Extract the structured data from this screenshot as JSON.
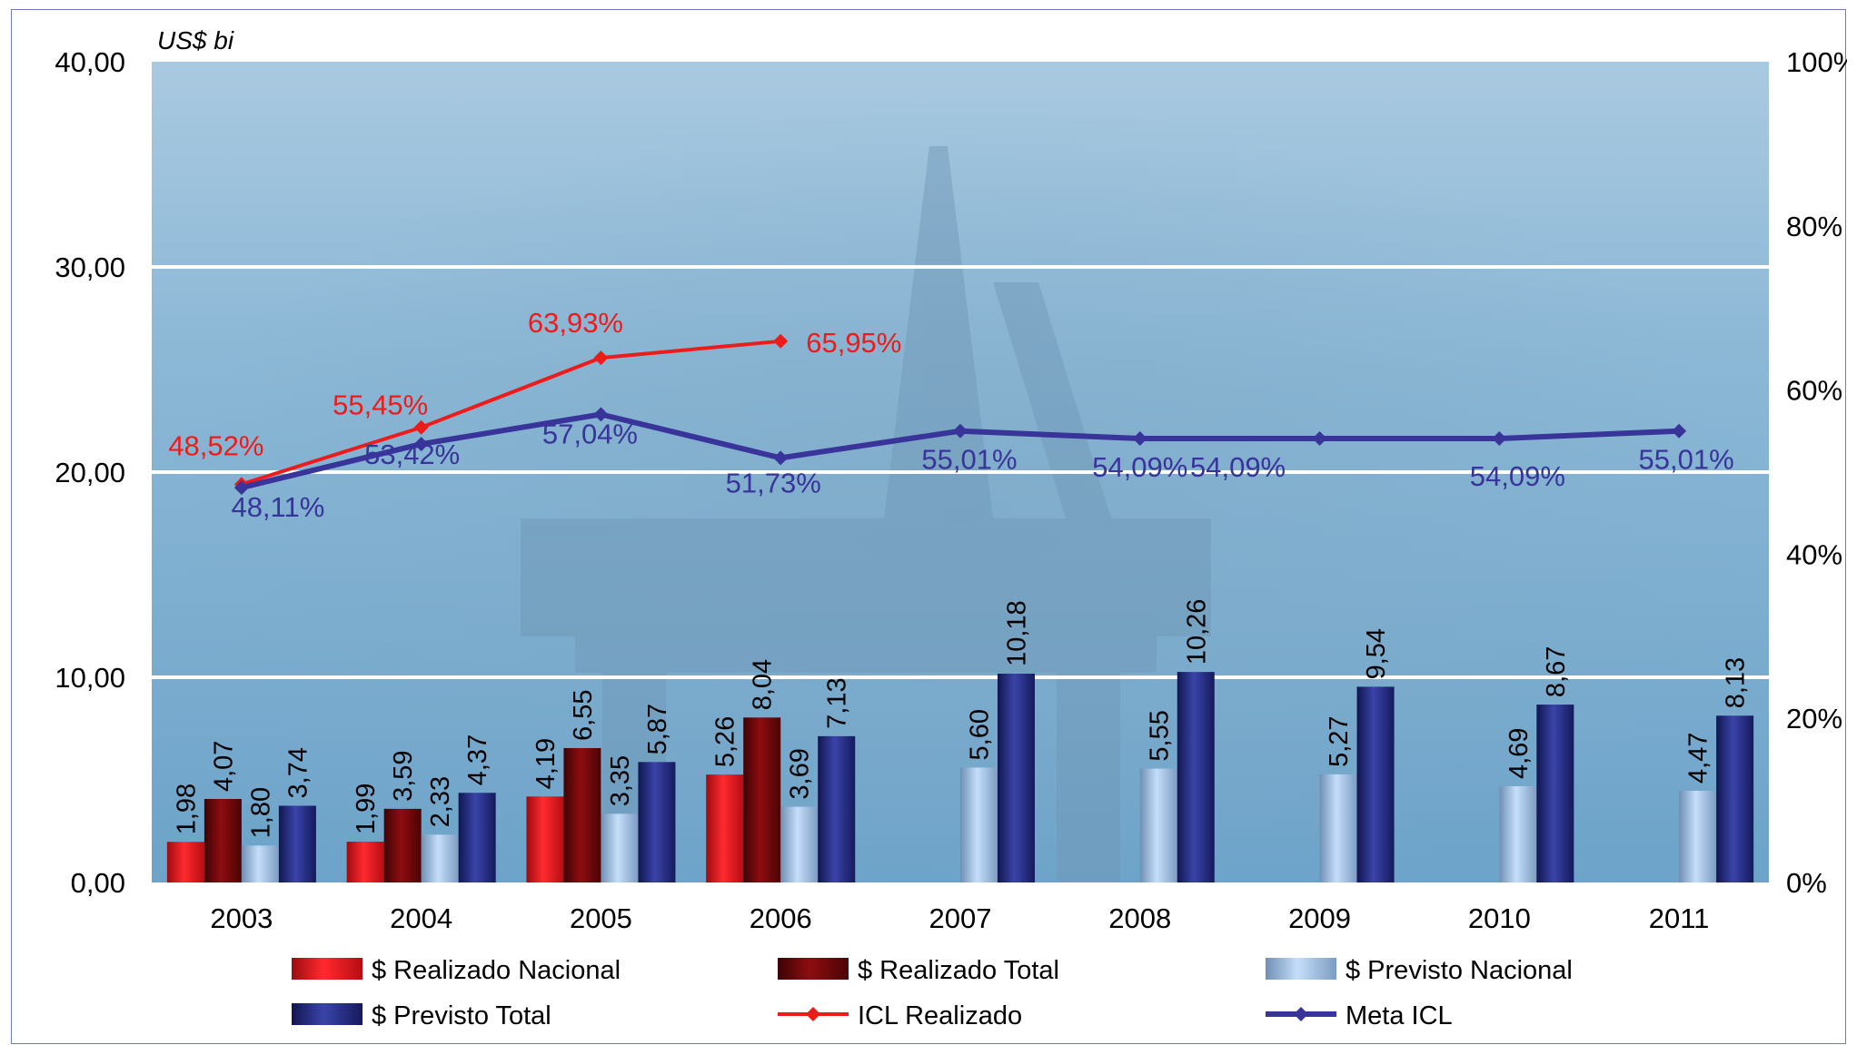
{
  "chart_data": {
    "type": "bar",
    "y_unit_label": "US$ bi",
    "ylim": [
      0,
      40
    ],
    "y_ticks": [
      "0,00",
      "10,00",
      "20,00",
      "30,00",
      "40,00"
    ],
    "y2lim": [
      0,
      100
    ],
    "y2_ticks": [
      "0%",
      "20%",
      "40%",
      "60%",
      "80%",
      "100%"
    ],
    "grid": true,
    "legend_position": "bottom",
    "categories": [
      "2003",
      "2004",
      "2005",
      "2006",
      "2007",
      "2008",
      "2009",
      "2010",
      "2011"
    ],
    "series": [
      {
        "name": "$ Realizado Nacional",
        "kind": "bar",
        "color": "#e8141c",
        "values": [
          1.98,
          1.99,
          4.19,
          5.26,
          null,
          null,
          null,
          null,
          null
        ],
        "labels": [
          "1,98",
          "1,99",
          "4,19",
          "5,26",
          "",
          "",
          "",
          "",
          ""
        ]
      },
      {
        "name": "$ Realizado Total",
        "kind": "bar",
        "color": "#7a0a0c",
        "values": [
          4.07,
          3.59,
          6.55,
          8.04,
          null,
          null,
          null,
          null,
          null
        ],
        "labels": [
          "4,07",
          "3,59",
          "6,55",
          "8,04",
          "",
          "",
          "",
          "",
          ""
        ]
      },
      {
        "name": "$ Previsto Nacional",
        "kind": "bar",
        "color": "#9fc3ec",
        "values": [
          1.8,
          2.33,
          3.35,
          3.69,
          5.6,
          5.55,
          5.27,
          4.69,
          4.47
        ],
        "labels": [
          "1,80",
          "2,33",
          "3,35",
          "3,69",
          "5,60",
          "5,55",
          "5,27",
          "4,69",
          "4,47"
        ]
      },
      {
        "name": "$ Previsto Total",
        "kind": "bar",
        "color": "#252c80",
        "values": [
          3.74,
          4.37,
          5.87,
          7.13,
          10.18,
          10.26,
          9.54,
          8.67,
          8.13
        ],
        "labels": [
          "3,74",
          "4,37",
          "5,87",
          "7,13",
          "10,18",
          "10,26",
          "9,54",
          "8,67",
          "8,13"
        ]
      },
      {
        "name": "ICL Realizado",
        "kind": "line",
        "axis": "right",
        "color": "#ee1b1b",
        "values": [
          48.52,
          55.45,
          63.93,
          65.95,
          null,
          null,
          null,
          null,
          null
        ],
        "labels": [
          "48,52%",
          "55,45%",
          "63,93%",
          "65,95%",
          "",
          "",
          "",
          "",
          ""
        ]
      },
      {
        "name": "Meta ICL",
        "kind": "line",
        "axis": "right",
        "color": "#38349a",
        "values": [
          48.11,
          53.42,
          57.04,
          51.73,
          55.01,
          54.09,
          54.09,
          54.09,
          55.01
        ],
        "labels": [
          "48,11%",
          "53,42%",
          "57,04%",
          "51,73%",
          "55,01%",
          "54,09%",
          "54,09%",
          "54,09%",
          "55,01%"
        ]
      }
    ]
  }
}
